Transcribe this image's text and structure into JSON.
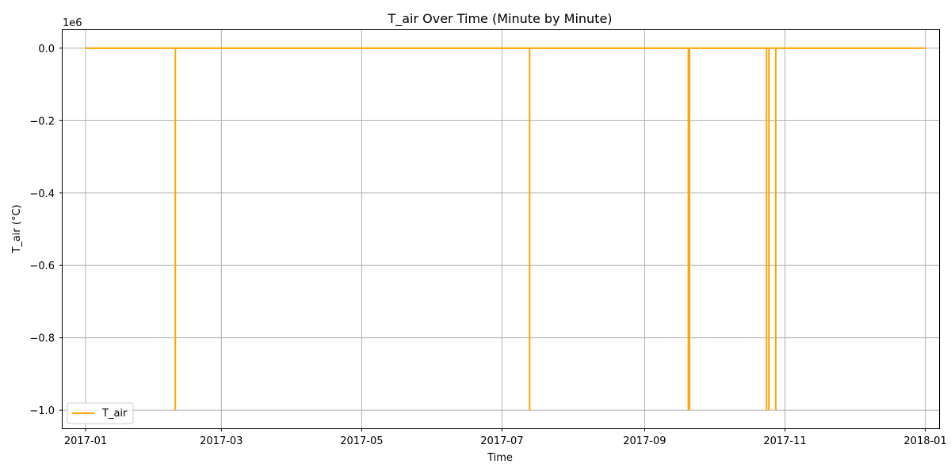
{
  "chart_data": {
    "type": "line",
    "title": "T_air Over Time (Minute by Minute)",
    "xlabel": "Time",
    "ylabel": "T_air (°C)",
    "y_offset_text": "1e6",
    "x_ticks": [
      "2017-01",
      "2017-03",
      "2017-05",
      "2017-07",
      "2017-09",
      "2017-11",
      "2018-01"
    ],
    "y_ticks": [
      "−1.0",
      "−0.8",
      "−0.6",
      "−0.4",
      "−0.2",
      "0.0"
    ],
    "x_range": [
      "2016-12-22",
      "2018-01-07"
    ],
    "ylim": [
      -1050000,
      50000
    ],
    "grid": true,
    "legend_position": "lower-left",
    "series": [
      {
        "name": "T_air",
        "color": "#ffa500",
        "baseline_value": 0,
        "start": "2017-01-01",
        "end": "2018-01-01",
        "dips": [
          {
            "date": "2017-02-09",
            "value": -1000000
          },
          {
            "date": "2017-07-13",
            "value": -1000000
          },
          {
            "date": "2017-09-20",
            "value": -1000000
          },
          {
            "date": "2017-09-20T12:00",
            "value": -1000000
          },
          {
            "date": "2017-10-24",
            "value": -1000000
          },
          {
            "date": "2017-10-25",
            "value": -1000000
          },
          {
            "date": "2017-10-28",
            "value": -1000000
          }
        ]
      }
    ]
  }
}
